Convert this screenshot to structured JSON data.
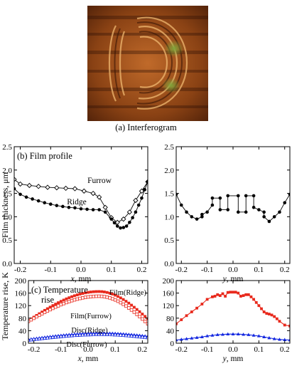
{
  "figure": {
    "interferogram_caption": "(a) Interferogram"
  },
  "chart_data": [
    {
      "type": "line",
      "panel_label": "(b) Film profile",
      "xlabel_var": "x",
      "xlabel_unit": ", mm",
      "ylabel": "Film thickness, μm",
      "xlim": [
        -0.22,
        0.22
      ],
      "ylim": [
        0.0,
        2.5
      ],
      "xticks": [
        -0.2,
        -0.1,
        0.0,
        0.1,
        0.2
      ],
      "xtick_labels": [
        "-0.2",
        "-0.1",
        "0.0",
        "0.1",
        "0.2"
      ],
      "yticks": [
        0.0,
        0.5,
        1.0,
        1.5,
        2.0,
        2.5
      ],
      "ytick_labels": [
        "0.0",
        "0.5",
        "1.0",
        "1.5",
        "2.0",
        "2.5"
      ],
      "annotations": [
        "Furrow",
        "Ridge"
      ],
      "series": [
        {
          "name": "Furrow",
          "marker": "open-diamond",
          "x": [
            -0.22,
            -0.2,
            -0.17,
            -0.14,
            -0.11,
            -0.08,
            -0.05,
            -0.02,
            0.01,
            0.04,
            0.06,
            0.08,
            0.1,
            0.12,
            0.14,
            0.16,
            0.18,
            0.2,
            0.22
          ],
          "y": [
            1.8,
            1.7,
            1.67,
            1.65,
            1.63,
            1.62,
            1.61,
            1.6,
            1.55,
            1.5,
            1.42,
            1.2,
            0.98,
            0.88,
            0.95,
            1.1,
            1.35,
            1.55,
            1.75
          ]
        },
        {
          "name": "Ridge",
          "marker": "filled-circle",
          "x": [
            -0.22,
            -0.2,
            -0.18,
            -0.16,
            -0.14,
            -0.12,
            -0.1,
            -0.08,
            -0.06,
            -0.04,
            -0.02,
            0.0,
            0.02,
            0.04,
            0.06,
            0.08,
            0.1,
            0.11,
            0.12,
            0.13,
            0.14,
            0.15,
            0.16,
            0.17,
            0.18,
            0.19,
            0.2,
            0.21,
            0.22
          ],
          "y": [
            1.6,
            1.48,
            1.42,
            1.38,
            1.34,
            1.3,
            1.27,
            1.24,
            1.22,
            1.2,
            1.19,
            1.17,
            1.16,
            1.15,
            1.15,
            1.1,
            0.95,
            0.87,
            0.8,
            0.76,
            0.77,
            0.8,
            0.88,
            0.98,
            1.1,
            1.25,
            1.4,
            1.58,
            1.75
          ]
        }
      ]
    },
    {
      "type": "line",
      "xlabel_var": "y",
      "xlabel_unit": ", mm",
      "xlim": [
        -0.22,
        0.22
      ],
      "ylim": [
        0.0,
        2.5
      ],
      "xticks": [
        -0.2,
        -0.1,
        0.0,
        0.1,
        0.2
      ],
      "xtick_labels": [
        "-0.2",
        "-0.1",
        "0.0",
        "0.1",
        "0.2"
      ],
      "yticks": [
        0.0,
        0.5,
        1.0,
        1.5,
        2.0,
        2.5
      ],
      "ytick_labels": [
        "0.0",
        "0.5",
        "1.0",
        "1.5",
        "2.0",
        "2.5"
      ],
      "series": [
        {
          "name": "",
          "marker": "filled-circle",
          "x": [
            -0.22,
            -0.2,
            -0.18,
            -0.16,
            -0.14,
            -0.12,
            -0.12,
            -0.1,
            -0.08,
            -0.08,
            -0.05,
            -0.05,
            -0.02,
            -0.02,
            0.02,
            0.02,
            0.05,
            0.05,
            0.08,
            0.08,
            0.1,
            0.12,
            0.12,
            0.14,
            0.16,
            0.18,
            0.2,
            0.22
          ],
          "y": [
            1.48,
            1.25,
            1.1,
            1.0,
            0.95,
            1.0,
            1.05,
            1.1,
            1.25,
            1.4,
            1.4,
            1.15,
            1.15,
            1.45,
            1.45,
            1.1,
            1.1,
            1.45,
            1.45,
            1.2,
            1.15,
            1.1,
            1.0,
            0.9,
            1.0,
            1.1,
            1.3,
            1.48
          ]
        }
      ]
    },
    {
      "type": "line",
      "panel_label_line1": "(c) Temperature",
      "panel_label_line2": "rise",
      "xlabel_var": "x",
      "xlabel_unit": ", mm",
      "ylabel": "Temperature rise, K",
      "xlim": [
        -0.22,
        0.22
      ],
      "ylim": [
        0,
        200
      ],
      "xticks": [
        -0.2,
        -0.1,
        0.0,
        0.1,
        0.2
      ],
      "xtick_labels": [
        "-0.2",
        "-0.1",
        "0.0",
        "0.1",
        "0.2"
      ],
      "yticks": [
        0,
        40,
        80,
        120,
        160,
        200
      ],
      "ytick_labels": [
        "0",
        "40",
        "80",
        "120",
        "160",
        "200"
      ],
      "annotations": [
        "Film(Ridge)",
        "Film(Furrow)",
        "Disc(Ridge)",
        "Disc(Furrow)"
      ],
      "series": [
        {
          "name": "Film(Ridge)",
          "color": "#e8291c",
          "marker": "filled-square",
          "x_range": [
            -0.22,
            0.22
          ],
          "points": 45,
          "curve": "peaked",
          "y_start": 72,
          "y_peak": 165,
          "x_peak": 0.04,
          "y_end": 78
        },
        {
          "name": "Film(Furrow)",
          "color": "#e8291c",
          "marker": "open-square",
          "x_range": [
            -0.22,
            0.22
          ],
          "points": 45,
          "curve": "peaked",
          "y_start": 70,
          "y_peak": 150,
          "x_peak": 0.04,
          "y_end": 62
        },
        {
          "name": "Disc(Ridge)",
          "color": "#1428e0",
          "marker": "filled-triangle",
          "x_range": [
            -0.22,
            0.22
          ],
          "points": 45,
          "curve": "peaked",
          "y_start": 12,
          "y_peak": 32,
          "x_peak": 0.05,
          "y_end": 22
        },
        {
          "name": "Disc(Furrow)",
          "color": "#1428e0",
          "marker": "open-triangle",
          "x_range": [
            -0.22,
            0.22
          ],
          "points": 45,
          "curve": "peaked",
          "y_start": 10,
          "y_peak": 28,
          "x_peak": 0.05,
          "y_end": 18
        }
      ]
    },
    {
      "type": "line",
      "xlabel_var": "y",
      "xlabel_unit": ", mm",
      "xlim": [
        -0.22,
        0.22
      ],
      "ylim": [
        0,
        200
      ],
      "xticks": [
        -0.2,
        -0.1,
        0.0,
        0.1,
        0.2
      ],
      "xtick_labels": [
        "-0.2",
        "-0.1",
        "0.0",
        "0.1",
        "0.2"
      ],
      "yticks": [
        0,
        40,
        80,
        120,
        160,
        200
      ],
      "ytick_labels": [
        "0",
        "40",
        "80",
        "120",
        "160",
        "200"
      ],
      "series": [
        {
          "name": "",
          "color": "#e8291c",
          "marker": "filled-square",
          "x": [
            -0.22,
            -0.2,
            -0.18,
            -0.16,
            -0.14,
            -0.12,
            -0.1,
            -0.08,
            -0.07,
            -0.06,
            -0.05,
            -0.04,
            -0.03,
            -0.02,
            -0.01,
            0.0,
            0.01,
            0.02,
            0.03,
            0.04,
            0.05,
            0.06,
            0.07,
            0.08,
            0.09,
            0.1,
            0.11,
            0.12,
            0.13,
            0.14,
            0.15,
            0.16,
            0.17,
            0.18,
            0.2,
            0.22
          ],
          "y": [
            62,
            75,
            88,
            100,
            112,
            125,
            140,
            148,
            150,
            155,
            152,
            158,
            150,
            162,
            163,
            163,
            163,
            160,
            150,
            152,
            155,
            155,
            148,
            140,
            130,
            120,
            110,
            100,
            95,
            93,
            90,
            85,
            78,
            70,
            58,
            55
          ]
        },
        {
          "name": "",
          "color": "#1428e0",
          "marker": "filled-triangle",
          "x": [
            -0.22,
            -0.2,
            -0.18,
            -0.16,
            -0.14,
            -0.12,
            -0.1,
            -0.08,
            -0.06,
            -0.04,
            -0.02,
            0.0,
            0.02,
            0.04,
            0.06,
            0.08,
            0.1,
            0.12,
            0.14,
            0.16,
            0.18,
            0.2,
            0.22
          ],
          "y": [
            10,
            12,
            14,
            16,
            18,
            20,
            23,
            25,
            27,
            28,
            29,
            29,
            29,
            28,
            27,
            25,
            23,
            20,
            17,
            14,
            12,
            11,
            10
          ]
        }
      ]
    }
  ]
}
